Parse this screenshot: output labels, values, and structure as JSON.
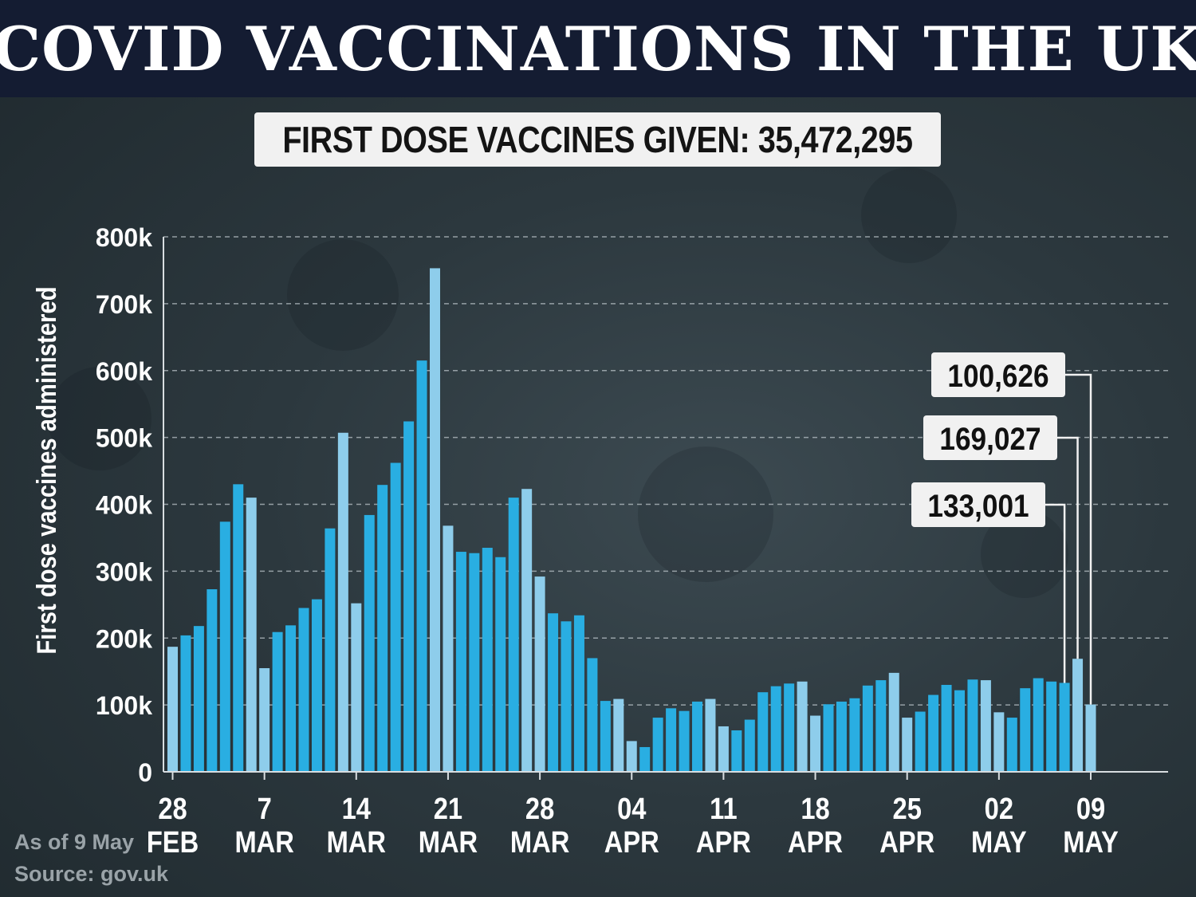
{
  "title": "COVID VACCINATIONS IN THE UK",
  "subtitle": "FIRST DOSE VACCINES GIVEN: 35,472,295",
  "footer": {
    "as_of": "As of 9 May",
    "source": "Source: gov.uk"
  },
  "colors": {
    "title_bg": "#141c32",
    "weekday_bar": "#29aee2",
    "weekend_bar": "#8ecdeb",
    "callout_bg": "#f1f1f1"
  },
  "chart_data": {
    "type": "bar",
    "title": "FIRST DOSE VACCINES GIVEN: 35,472,295",
    "ylabel": "First dose vaccines administered",
    "xlabel": "",
    "ylim": [
      0,
      800000
    ],
    "y_ticks": [
      "0",
      "100k",
      "200k",
      "300k",
      "400k",
      "500k",
      "600k",
      "700k",
      "800k"
    ],
    "y_tick_values": [
      0,
      100000,
      200000,
      300000,
      400000,
      500000,
      600000,
      700000,
      800000
    ],
    "grid": "horizontal dashed",
    "start_date": "2021-02-28",
    "end_date": "2021-05-09",
    "x_ticks": [
      {
        "date": "2021-02-28",
        "day": "28",
        "month": "FEB"
      },
      {
        "date": "2021-03-07",
        "day": "7",
        "month": "MAR"
      },
      {
        "date": "2021-03-14",
        "day": "14",
        "month": "MAR"
      },
      {
        "date": "2021-03-21",
        "day": "21",
        "month": "MAR"
      },
      {
        "date": "2021-03-28",
        "day": "28",
        "month": "MAR"
      },
      {
        "date": "2021-04-04",
        "day": "04",
        "month": "APR"
      },
      {
        "date": "2021-04-11",
        "day": "11",
        "month": "APR"
      },
      {
        "date": "2021-04-18",
        "day": "18",
        "month": "APR"
      },
      {
        "date": "2021-04-25",
        "day": "25",
        "month": "APR"
      },
      {
        "date": "2021-05-02",
        "day": "02",
        "month": "MAY"
      },
      {
        "date": "2021-05-09",
        "day": "09",
        "month": "MAY"
      }
    ],
    "values": [
      187000,
      204000,
      218000,
      273000,
      374000,
      430000,
      410000,
      155000,
      209000,
      219000,
      245000,
      258000,
      364000,
      507000,
      252000,
      384000,
      429000,
      462000,
      524000,
      615000,
      753000,
      368000,
      329000,
      327000,
      335000,
      321000,
      410000,
      423000,
      292000,
      237000,
      225000,
      234000,
      170000,
      106000,
      109000,
      46000,
      37000,
      81000,
      95000,
      91000,
      105000,
      109000,
      68000,
      62000,
      78000,
      119000,
      128000,
      132000,
      135000,
      84000,
      101000,
      105000,
      110000,
      129000,
      137000,
      148000,
      81000,
      90000,
      115000,
      130000,
      122000,
      138000,
      137000,
      89000,
      81000,
      125000,
      140000,
      135000,
      133001,
      169027,
      100626
    ],
    "callouts": [
      {
        "label": "100,626",
        "date": "2021-05-09",
        "value": 100626
      },
      {
        "label": "169,027",
        "date": "2021-05-08",
        "value": 169027
      },
      {
        "label": "133,001",
        "date": "2021-05-07",
        "value": 133001
      }
    ]
  }
}
